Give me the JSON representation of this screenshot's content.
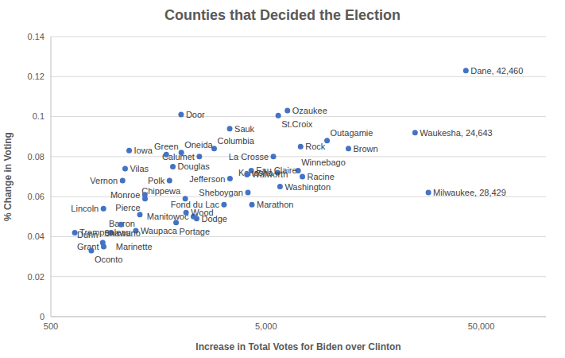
{
  "chart_data": {
    "type": "scatter",
    "title": "Counties that Decided the Election",
    "x_label": "Increase in Total Votes for Biden over Clinton",
    "y_label": "% Change in Voting",
    "log": "x",
    "grid": "y",
    "color": "#4472c4",
    "marker": "circle",
    "xlim": [
      500,
      100000
    ],
    "xticks": [
      500,
      {
        "value": 5000,
        "label": "5,000"
      },
      {
        "value": 50000,
        "label": "50,000"
      }
    ],
    "ylim": [
      0,
      0.14
    ],
    "yticks": [
      0,
      0.02,
      0.04,
      0.06,
      0.08,
      0.1,
      0.12,
      0.14
    ],
    "labels": [
      "Dane, 42,460",
      "Milwaukee, 28,429",
      "Waukesha, 24,643",
      "Brown",
      "Outagamie",
      "Ozaukee",
      "Rock",
      "Racine",
      "Winnebago",
      "Washington",
      "St.Croix",
      "Kenosha",
      "La Crosse",
      "Marathon",
      "Eau Claire",
      "Sheboygan",
      "Walworth",
      "Sauk",
      "Jefferson",
      "Fond du Lac",
      "Columbia",
      "Calumet",
      "Dodge",
      "Manitowoc",
      "Wood",
      "Chippewa",
      "Door",
      "Oneida",
      "Portage",
      "Douglas",
      "Polk",
      "Green",
      "Monroe",
      "Pierce",
      "Barron",
      "Waupaca",
      "Iowa",
      "Vilas",
      "Vernon",
      "Shawano",
      "Marinette",
      "Grant",
      "Lincoln",
      "Dunn",
      "Oconto",
      "Trempealeau"
    ],
    "x": [
      42460,
      28429,
      24643,
      12080,
      9610,
      6290,
      7240,
      7380,
      7050,
      5810,
      5700,
      5660,
      5410,
      4300,
      4270,
      4120,
      4080,
      3390,
      3400,
      3190,
      2870,
      2450,
      2380,
      2300,
      2125,
      2107,
      2015,
      2020,
      1910,
      1845,
      1780,
      1720,
      1367,
      1370,
      1296,
      1241,
      1156,
      1107,
      1077,
      1059,
      952,
      880,
      878,
      871,
      771,
      646
    ],
    "values": [
      0.123,
      0.062,
      0.092,
      0.084,
      0.088,
      0.103,
      0.085,
      0.07,
      0.073,
      0.065,
      0.1005,
      0.072,
      0.08,
      0.056,
      0.073,
      0.062,
      0.071,
      0.094,
      0.069,
      0.056,
      0.084,
      0.08,
      0.049,
      0.05,
      0.052,
      0.059,
      0.101,
      0.082,
      0.047,
      0.075,
      0.068,
      0.081,
      0.061,
      0.059,
      0.051,
      0.043,
      0.083,
      0.074,
      0.068,
      0.046,
      0.042,
      0.035,
      0.054,
      0.037,
      0.033,
      0.042
    ]
  }
}
